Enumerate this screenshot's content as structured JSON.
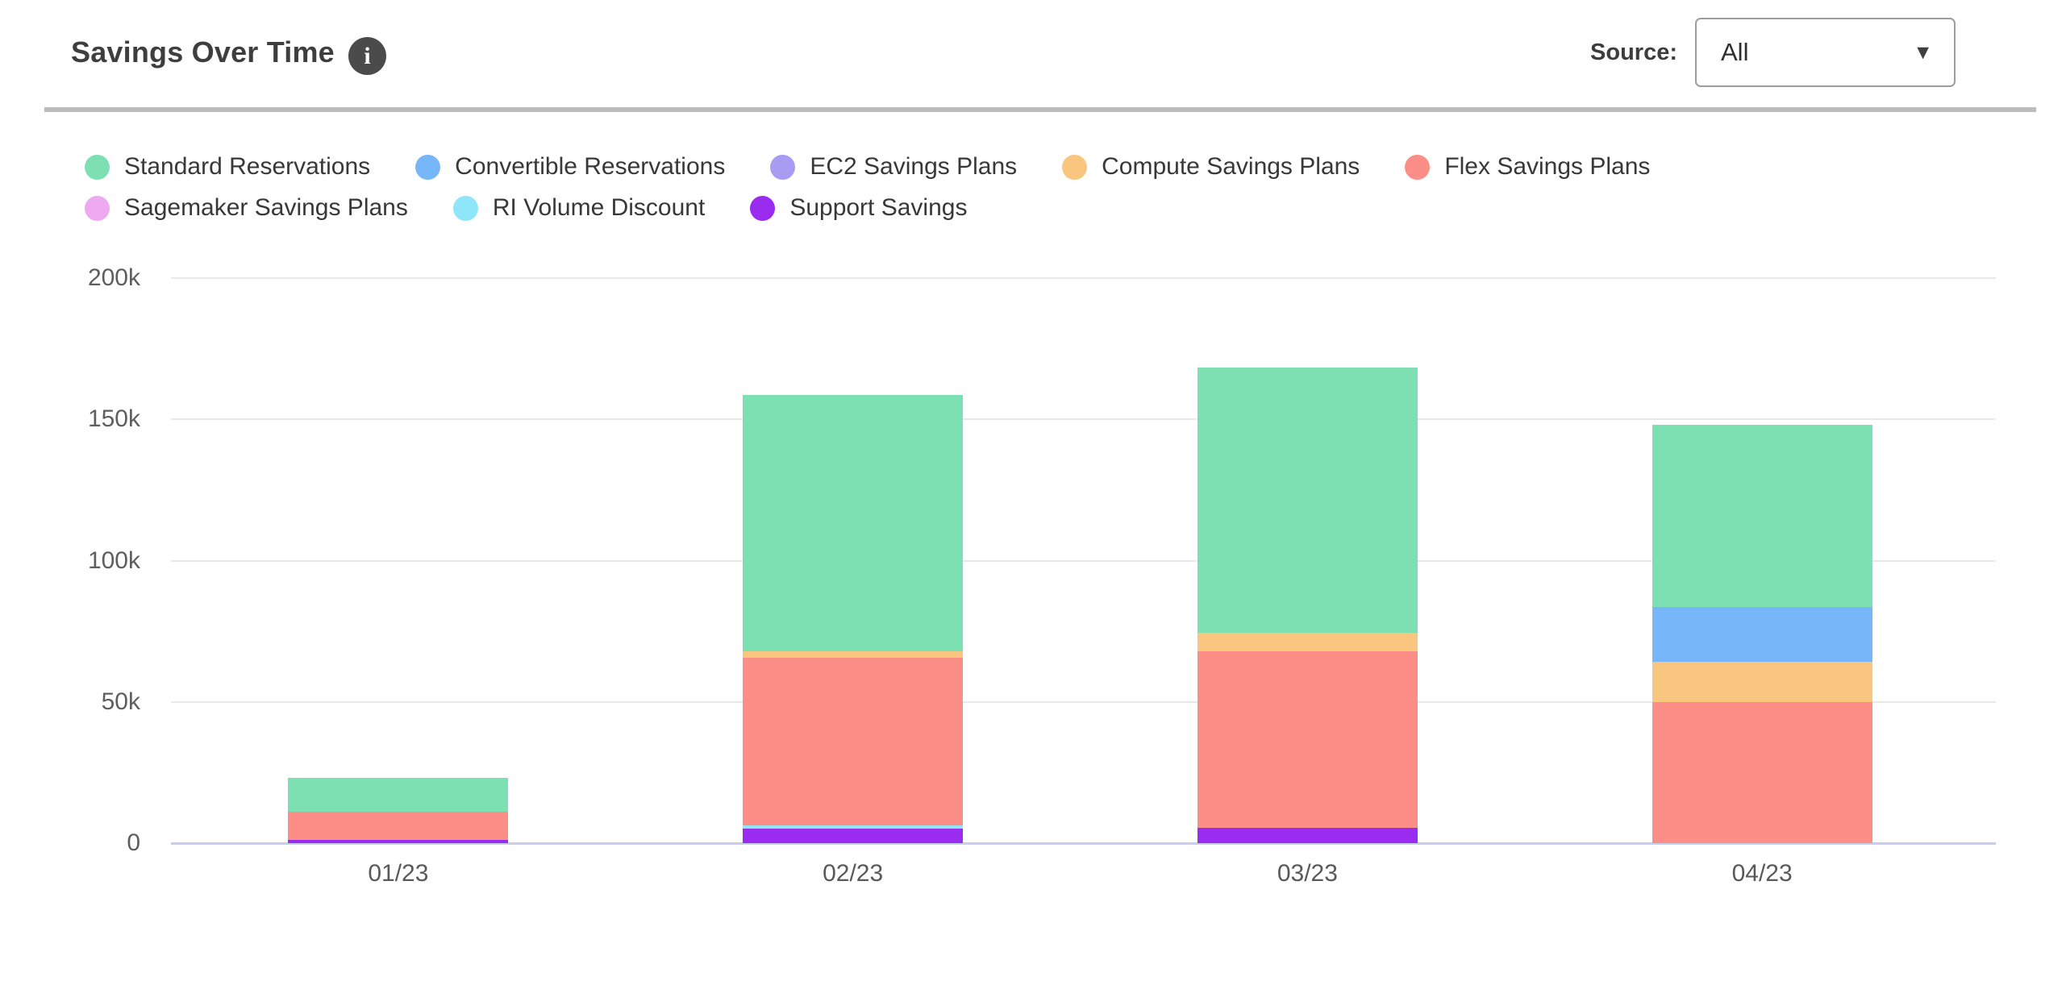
{
  "header": {
    "title": "Savings Over Time",
    "source_label": "Source:",
    "source_value": "All"
  },
  "icons": {
    "info": "i",
    "caret_down": "▼"
  },
  "chart_data": {
    "type": "bar",
    "stacked": true,
    "title": "Savings Over Time",
    "categories": [
      "01/23",
      "02/23",
      "03/23",
      "04/23"
    ],
    "series": [
      {
        "name": "Standard Reservations",
        "color": "#7de0b3",
        "values": [
          12000,
          90500,
          93800,
          64500
        ]
      },
      {
        "name": "Convertible Reservations",
        "color": "#77b6f9",
        "values": [
          0,
          0,
          0,
          19300
        ]
      },
      {
        "name": "EC2 Savings Plans",
        "color": "#a79cf2",
        "values": [
          0,
          0,
          0,
          0
        ]
      },
      {
        "name": "Compute Savings Plans",
        "color": "#f8c67e",
        "values": [
          0,
          2300,
          6700,
          14200
        ]
      },
      {
        "name": "Flex Savings Plans",
        "color": "#fc8e88",
        "values": [
          10000,
          59500,
          62400,
          50000
        ]
      },
      {
        "name": "Sagemaker Savings Plans",
        "color": "#efa9f0",
        "values": [
          0,
          0,
          0,
          0
        ]
      },
      {
        "name": "RI Volume Discount",
        "color": "#8fe6f8",
        "values": [
          0,
          1200,
          0,
          0
        ]
      },
      {
        "name": "Support Savings",
        "color": "#9a2cf0",
        "values": [
          1000,
          5000,
          5500,
          0
        ]
      }
    ],
    "totals": [
      23000,
      158500,
      168400,
      148000
    ],
    "stack_order": "reverse_of_legend_bottom_to_top",
    "y_ticks": [
      {
        "value": 0,
        "label": "0"
      },
      {
        "value": 50000,
        "label": "50k"
      },
      {
        "value": 100000,
        "label": "100k"
      },
      {
        "value": 150000,
        "label": "150k"
      },
      {
        "value": 200000,
        "label": "200k"
      }
    ],
    "ylim": [
      0,
      200000
    ],
    "xlabel": "",
    "ylabel": "",
    "grid": "horizontal",
    "legend_position": "top-left",
    "legend_rows": [
      5,
      3
    ],
    "axis_line_color": "#c7cdec",
    "gridline_color": "#e8e8e8"
  }
}
